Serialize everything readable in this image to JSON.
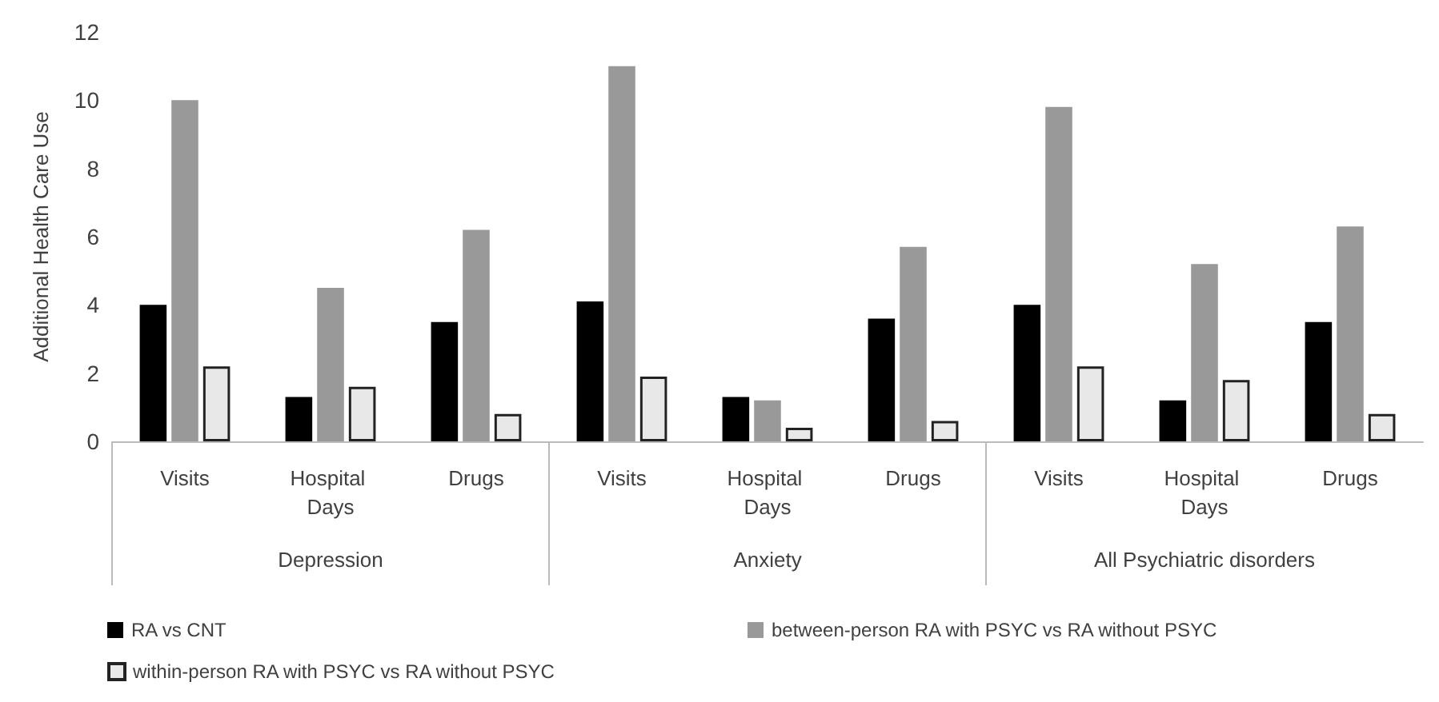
{
  "chart_data": {
    "type": "bar",
    "ylabel": "Additional Health Care Use",
    "categories": [
      "Visits",
      "Hospital Days",
      "Drugs",
      "Visits",
      "Hospital Days",
      "Drugs",
      "Visits",
      "Hospital Days",
      "Drugs"
    ],
    "series": [
      {
        "name": "RA vs CNT",
        "color": "#000000",
        "values": [
          4.0,
          1.3,
          3.5,
          4.1,
          1.3,
          3.6,
          4.0,
          1.2,
          3.5
        ]
      },
      {
        "name": "between-person RA with PSYC vs RA without PSYC",
        "color": "#999999",
        "values": [
          10.0,
          4.5,
          6.2,
          11.0,
          1.2,
          5.7,
          9.8,
          5.2,
          6.3
        ]
      },
      {
        "name": "within-person RA with PSYC vs RA without PSYC",
        "color": "#e8e8e8",
        "values": [
          2.2,
          1.6,
          0.8,
          1.9,
          0.4,
          0.6,
          2.2,
          1.8,
          0.8
        ]
      }
    ],
    "annotations": [
      "Depression",
      "Anxiety",
      "All Psychiatric disorders"
    ],
    "ylim": [
      0,
      12
    ],
    "yticks": [
      0,
      2,
      4,
      6,
      8,
      10,
      12
    ],
    "grid": false,
    "legend": "bottom"
  }
}
